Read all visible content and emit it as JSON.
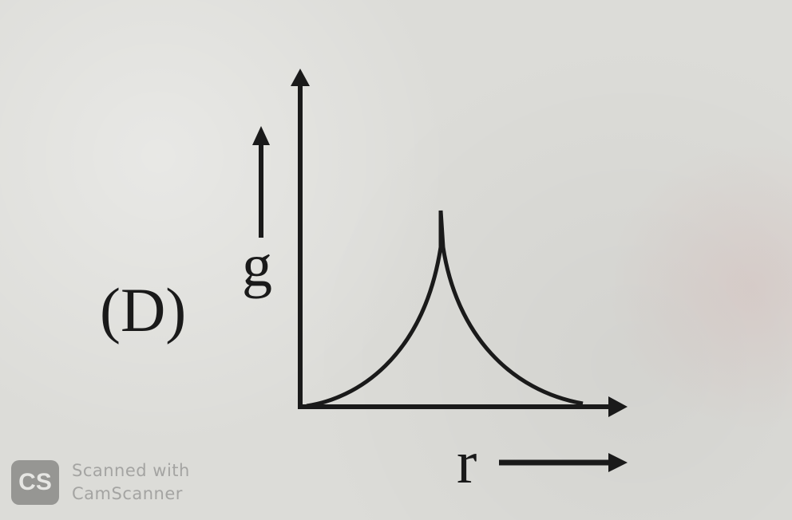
{
  "diagram": {
    "option_label": "(D)",
    "y_axis_label": "g",
    "x_axis_label": "r",
    "curve_description": "g rises from zero to a sharp peak then falls back toward zero"
  },
  "watermark": {
    "logo_text": "CS",
    "line1": "Scanned with",
    "line2": "CamScanner"
  }
}
